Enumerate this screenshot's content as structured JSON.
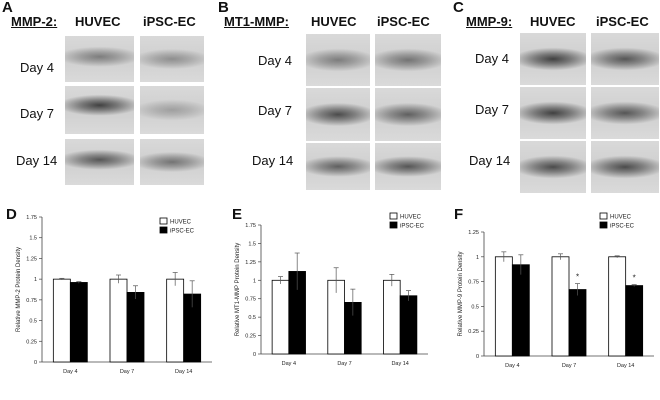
{
  "panels": {
    "A": {
      "letter": "A",
      "protein": "MMP-2:",
      "col1": "HUVEC",
      "col2": "iPSC-EC",
      "rows": [
        "Day 4",
        "Day 7",
        "Day 14"
      ]
    },
    "B": {
      "letter": "B",
      "protein": "MT1-MMP:",
      "col1": "HUVEC",
      "col2": "iPSC-EC",
      "rows": [
        "Day 4",
        "Day 7",
        "Day 14"
      ]
    },
    "C": {
      "letter": "C",
      "protein": "MMP-9:",
      "col1": "HUVEC",
      "col2": "iPSC-EC",
      "rows": [
        "Day 4",
        "Day 7",
        "Day 14"
      ]
    },
    "D": {
      "letter": "D"
    },
    "E": {
      "letter": "E"
    },
    "F": {
      "letter": "F"
    }
  },
  "colors": {
    "huvec": "#ffffff",
    "ipsc": "#000000",
    "axis": "#444444"
  },
  "chart_data": [
    {
      "id": "D",
      "type": "bar",
      "categories": [
        "Day 4",
        "Day 7",
        "Day 14"
      ],
      "series": [
        {
          "name": "HUVEC",
          "values": [
            1.0,
            1.0,
            1.0
          ],
          "errors": [
            0.01,
            0.05,
            0.08
          ]
        },
        {
          "name": "iPSC-EC",
          "values": [
            0.96,
            0.84,
            0.82
          ],
          "errors": [
            0.01,
            0.08,
            0.16
          ]
        }
      ],
      "ylabel": "Relative MMP-2 Protein Density",
      "ylim": [
        0,
        1.75
      ],
      "yticks": [
        "0",
        "0.25",
        "0.5",
        "0.75",
        "1",
        "1.25",
        "1.5",
        "1.75"
      ],
      "legend": "top-right",
      "significance": []
    },
    {
      "id": "E",
      "type": "bar",
      "categories": [
        "Day 4",
        "Day 7",
        "Day 14"
      ],
      "series": [
        {
          "name": "HUVEC",
          "values": [
            1.0,
            1.0,
            1.0
          ],
          "errors": [
            0.05,
            0.17,
            0.08
          ]
        },
        {
          "name": "iPSC-EC",
          "values": [
            1.12,
            0.7,
            0.79
          ],
          "errors": [
            0.25,
            0.18,
            0.07
          ]
        }
      ],
      "ylabel": "Relative MT1-MMP Protein Density",
      "ylim": [
        0,
        1.75
      ],
      "yticks": [
        "0",
        "0.25",
        "0.5",
        "0.75",
        "1",
        "1.25",
        "1.5",
        "1.75"
      ],
      "legend": "top-right",
      "significance": []
    },
    {
      "id": "F",
      "type": "bar",
      "categories": [
        "Day 4",
        "Day 7",
        "Day 14"
      ],
      "series": [
        {
          "name": "HUVEC",
          "values": [
            1.0,
            1.0,
            1.0
          ],
          "errors": [
            0.05,
            0.03,
            0.01
          ]
        },
        {
          "name": "iPSC-EC",
          "values": [
            0.92,
            0.67,
            0.71
          ],
          "errors": [
            0.1,
            0.06,
            0.01
          ]
        }
      ],
      "ylabel": "Relative MMP-9 Protein Density",
      "ylim": [
        0,
        1.25
      ],
      "yticks": [
        "0",
        "0.25",
        "0.5",
        "0.75",
        "1",
        "1.25"
      ],
      "legend": "top-right",
      "significance": [
        {
          "category": "Day 7",
          "series": "iPSC-EC",
          "mark": "*"
        },
        {
          "category": "Day 14",
          "series": "iPSC-EC",
          "mark": "*"
        }
      ]
    }
  ]
}
